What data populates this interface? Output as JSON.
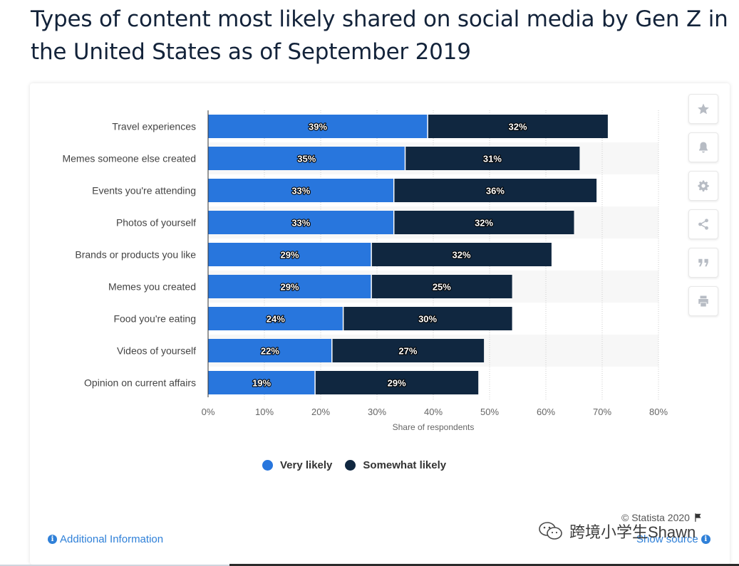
{
  "title": "Types of content most likely shared on social media by Gen Z in the United States as of September 2019",
  "chart_data": {
    "type": "bar",
    "orientation": "horizontal",
    "stacked": true,
    "categories": [
      "Travel experiences",
      "Memes someone else created",
      "Events you're attending",
      "Photos of yourself",
      "Brands or products you like",
      "Memes you created",
      "Food you're eating",
      "Videos of yourself",
      "Opinion on current affairs"
    ],
    "series": [
      {
        "name": "Very likely",
        "color": "#2876dd",
        "values": [
          39,
          35,
          33,
          33,
          29,
          29,
          24,
          22,
          19
        ]
      },
      {
        "name": "Somewhat likely",
        "color": "#102740",
        "values": [
          32,
          31,
          36,
          32,
          32,
          25,
          30,
          27,
          29
        ]
      }
    ],
    "xlabel": "Share of respondents",
    "x_ticks": [
      "0%",
      "10%",
      "20%",
      "30%",
      "40%",
      "50%",
      "60%",
      "70%",
      "80%"
    ],
    "xlim": [
      0,
      80
    ],
    "value_suffix": "%",
    "grid": "vertical dotted",
    "legend_position": "bottom"
  },
  "toolbar": {
    "icons": [
      "star-icon",
      "bell-icon",
      "gear-icon",
      "share-icon",
      "quote-icon",
      "print-icon"
    ]
  },
  "footer": {
    "additional_info": "Additional Information",
    "copyright": "© Statista 2020",
    "show_source": "Show source",
    "info_glyph": "i"
  },
  "watermark": {
    "text": "跨境小学生Shawn"
  },
  "colors": {
    "very_likely": "#2876dd",
    "somewhat_likely": "#102740",
    "link": "#2f80d8",
    "title": "#13233a"
  }
}
